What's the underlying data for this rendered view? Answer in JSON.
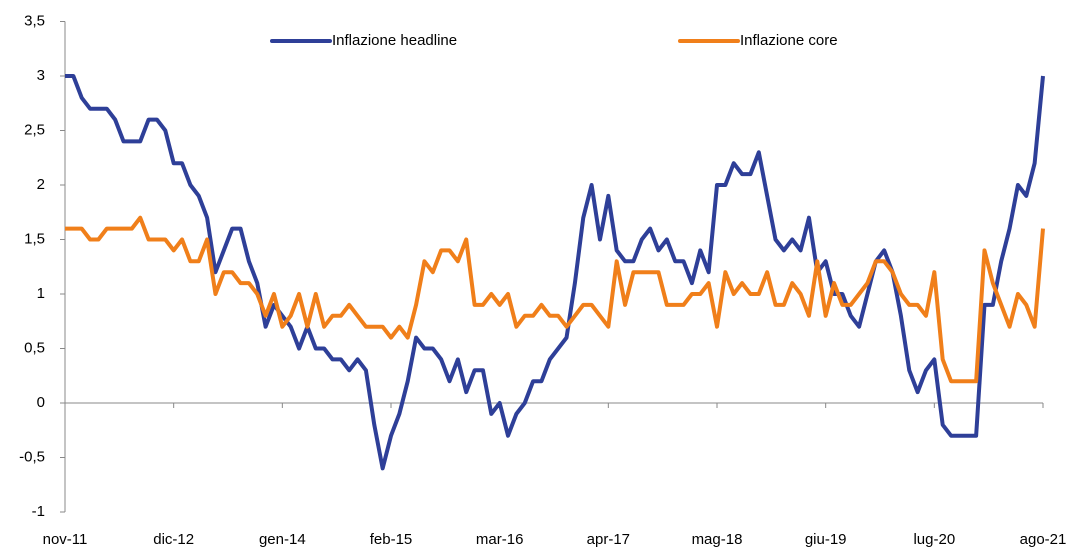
{
  "chart_data": {
    "type": "line",
    "categories": [
      "nov-11",
      null,
      null,
      null,
      null,
      null,
      null,
      null,
      null,
      null,
      null,
      null,
      null,
      "dic-12",
      null,
      null,
      null,
      null,
      null,
      null,
      null,
      null,
      null,
      null,
      null,
      null,
      "gen-14",
      null,
      null,
      null,
      null,
      null,
      null,
      null,
      null,
      null,
      null,
      null,
      null,
      "feb-15",
      null,
      null,
      null,
      null,
      null,
      null,
      null,
      null,
      null,
      null,
      null,
      null,
      "mar-16",
      null,
      null,
      null,
      null,
      null,
      null,
      null,
      null,
      null,
      null,
      null,
      null,
      "apr-17",
      null,
      null,
      null,
      null,
      null,
      null,
      null,
      null,
      null,
      null,
      null,
      null,
      "mag-18",
      null,
      null,
      null,
      null,
      null,
      null,
      null,
      null,
      null,
      null,
      null,
      null,
      "giu-19",
      null,
      null,
      null,
      null,
      null,
      null,
      null,
      null,
      null,
      null,
      null,
      null,
      "lug-20",
      null,
      null,
      null,
      null,
      null,
      null,
      null,
      null,
      null,
      null,
      null,
      null,
      "ago-21"
    ],
    "series": [
      {
        "name": "Inflazione headline",
        "color": "#2e3f98",
        "values": [
          3.0,
          3.0,
          2.8,
          2.7,
          2.7,
          2.7,
          2.6,
          2.4,
          2.4,
          2.4,
          2.6,
          2.6,
          2.5,
          2.2,
          2.2,
          2.0,
          1.9,
          1.7,
          1.2,
          1.4,
          1.6,
          1.6,
          1.3,
          1.1,
          0.7,
          0.9,
          0.8,
          0.7,
          0.5,
          0.7,
          0.5,
          0.5,
          0.4,
          0.4,
          0.3,
          0.4,
          0.3,
          -0.2,
          -0.6,
          -0.3,
          -0.1,
          0.2,
          0.6,
          0.5,
          0.5,
          0.4,
          0.2,
          0.4,
          0.1,
          0.3,
          0.3,
          -0.1,
          0.0,
          -0.3,
          -0.1,
          0.0,
          0.2,
          0.2,
          0.4,
          0.5,
          0.6,
          1.1,
          1.7,
          2.0,
          1.5,
          1.9,
          1.4,
          1.3,
          1.3,
          1.5,
          1.6,
          1.4,
          1.5,
          1.3,
          1.3,
          1.1,
          1.4,
          1.2,
          2.0,
          2.0,
          2.2,
          2.1,
          2.1,
          2.3,
          1.9,
          1.5,
          1.4,
          1.5,
          1.4,
          1.7,
          1.2,
          1.3,
          1.0,
          1.0,
          0.8,
          0.7,
          1.0,
          1.3,
          1.4,
          1.2,
          0.8,
          0.3,
          0.1,
          0.3,
          0.4,
          -0.2,
          -0.3,
          -0.3,
          -0.3,
          -0.3,
          0.9,
          0.9,
          1.3,
          1.6,
          2.0,
          1.9,
          2.2,
          3.0
        ]
      },
      {
        "name": "Inflazione core",
        "color": "#f07f1a",
        "values": [
          1.6,
          1.6,
          1.6,
          1.5,
          1.5,
          1.6,
          1.6,
          1.6,
          1.6,
          1.7,
          1.5,
          1.5,
          1.5,
          1.4,
          1.5,
          1.3,
          1.3,
          1.5,
          1.0,
          1.2,
          1.2,
          1.1,
          1.1,
          1.0,
          0.8,
          1.0,
          0.7,
          0.8,
          1.0,
          0.7,
          1.0,
          0.7,
          0.8,
          0.8,
          0.9,
          0.8,
          0.7,
          0.7,
          0.7,
          0.6,
          0.7,
          0.6,
          0.9,
          1.3,
          1.2,
          1.4,
          1.4,
          1.3,
          1.5,
          0.9,
          0.9,
          1.0,
          0.9,
          1.0,
          0.7,
          0.8,
          0.8,
          0.9,
          0.8,
          0.8,
          0.7,
          0.8,
          0.9,
          0.9,
          0.8,
          0.7,
          1.3,
          0.9,
          1.2,
          1.2,
          1.2,
          1.2,
          0.9,
          0.9,
          0.9,
          1.0,
          1.0,
          1.1,
          0.7,
          1.2,
          1.0,
          1.1,
          1.0,
          1.0,
          1.2,
          0.9,
          0.9,
          1.1,
          1.0,
          0.8,
          1.3,
          0.8,
          1.1,
          0.9,
          0.9,
          1.0,
          1.1,
          1.3,
          1.3,
          1.2,
          1.0,
          0.9,
          0.9,
          0.8,
          1.2,
          0.4,
          0.2,
          0.2,
          0.2,
          0.2,
          1.4,
          1.1,
          0.9,
          0.7,
          1.0,
          0.9,
          0.7,
          1.6
        ]
      }
    ],
    "ylim": [
      -1,
      3.5
    ],
    "yticks": [
      -1,
      {
        "value": -0.5,
        "label": "-0,5"
      },
      0,
      {
        "value": 0.5,
        "label": "0,5"
      },
      1,
      {
        "value": 1.5,
        "label": "1,5"
      },
      2,
      {
        "value": 2.5,
        "label": "2,5"
      },
      3,
      {
        "value": 3.5,
        "label": "3,5"
      }
    ],
    "legend": "top",
    "grid": false
  }
}
